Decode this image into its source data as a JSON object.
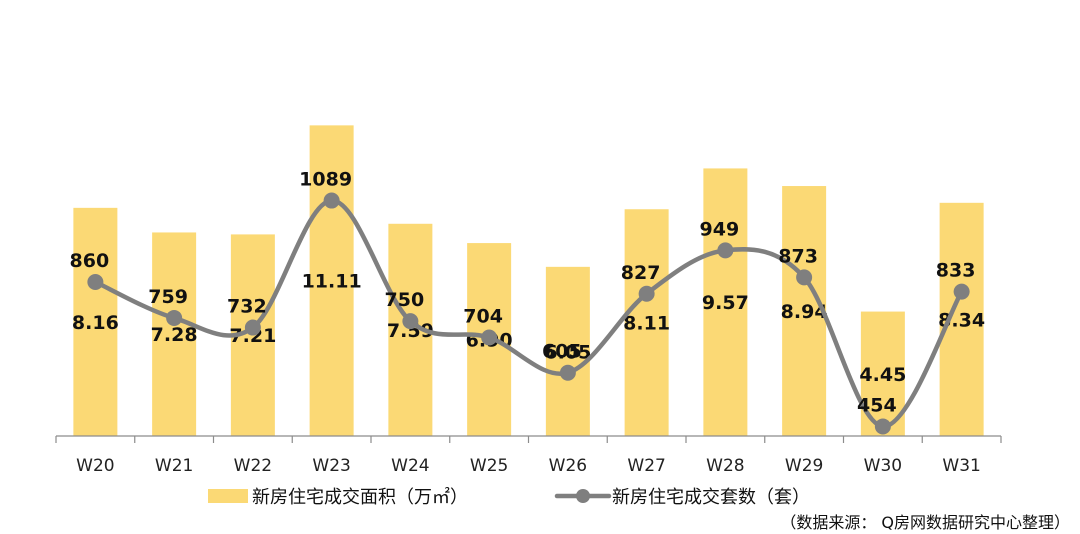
{
  "chart_data": {
    "type": "bar",
    "categories": [
      "W20",
      "W21",
      "W22",
      "W23",
      "W24",
      "W25",
      "W26",
      "W27",
      "W28",
      "W29",
      "W30",
      "W31"
    ],
    "series": [
      {
        "name": "新房住宅成交面积（万㎡）",
        "type": "bar",
        "axis": "left",
        "values": [
          8.16,
          7.28,
          7.21,
          11.11,
          7.59,
          6.9,
          6.05,
          8.11,
          9.57,
          8.94,
          4.45,
          8.34
        ],
        "labels": [
          "8.16",
          "7.28",
          "7.21",
          "11.11",
          "7.59",
          "6.90",
          "6.05",
          "8.11",
          "9.57",
          "8.94",
          "4.45",
          "8.34"
        ],
        "color": "#FBD975"
      },
      {
        "name": "新房住宅成交套数（套）",
        "type": "line",
        "smooth": true,
        "axis": "right",
        "values": [
          860,
          759,
          732,
          1089,
          750,
          704,
          605,
          827,
          949,
          873,
          454,
          833
        ],
        "labels": [
          "860",
          "759",
          "732",
          "1089",
          "750",
          "704",
          "605",
          "827",
          "949",
          "873",
          "454",
          "833"
        ],
        "color": "#7F7F7F"
      }
    ],
    "ylim_left": [
      0,
      12
    ],
    "ylim_right": [
      0,
      1150
    ],
    "grid": false,
    "legend_placement": "bottom",
    "source": "（数据来源： Q房网数据研究中心整理）"
  }
}
